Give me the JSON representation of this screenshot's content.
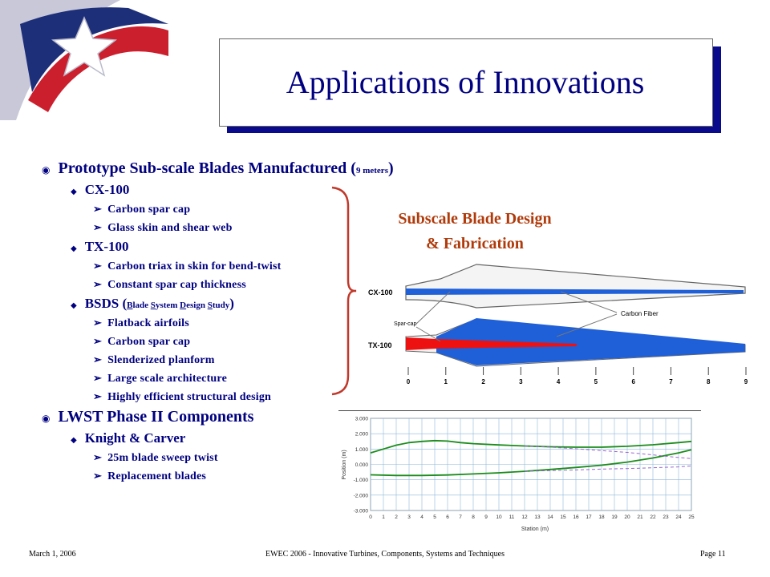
{
  "slide": {
    "title": "Applications of Innovations",
    "bullets": [
      {
        "level": 1,
        "parts": [
          {
            "t": "Prototype Sub-scale Blades Manufactured ("
          },
          {
            "t": "9 meters",
            "small": true
          },
          {
            "t": ")"
          }
        ]
      },
      {
        "level": 2,
        "parts": [
          {
            "t": "CX-100"
          }
        ]
      },
      {
        "level": 3,
        "parts": [
          {
            "t": "Carbon spar cap"
          }
        ]
      },
      {
        "level": 3,
        "parts": [
          {
            "t": "Glass skin and shear web"
          }
        ]
      },
      {
        "level": 2,
        "parts": [
          {
            "t": "TX-100"
          }
        ]
      },
      {
        "level": 3,
        "parts": [
          {
            "t": "Carbon triax in skin for bend-twist"
          }
        ]
      },
      {
        "level": 3,
        "parts": [
          {
            "t": "Constant spar cap thickness"
          }
        ]
      },
      {
        "level": 2,
        "parts": [
          {
            "t": "BSDS ("
          },
          {
            "t": "B",
            "small": true,
            "u": true
          },
          {
            "t": "lade ",
            "small": true
          },
          {
            "t": "S",
            "small": true,
            "u": true
          },
          {
            "t": "ystem ",
            "small": true
          },
          {
            "t": "D",
            "small": true,
            "u": true
          },
          {
            "t": "esign ",
            "small": true
          },
          {
            "t": "S",
            "small": true,
            "u": true
          },
          {
            "t": "tudy",
            "small": true
          },
          {
            "t": ")"
          }
        ]
      },
      {
        "level": 3,
        "parts": [
          {
            "t": "Flatback airfoils"
          }
        ]
      },
      {
        "level": 3,
        "parts": [
          {
            "t": "Carbon spar cap"
          }
        ]
      },
      {
        "level": 3,
        "parts": [
          {
            "t": "Slenderized planform"
          }
        ]
      },
      {
        "level": 3,
        "parts": [
          {
            "t": "Large scale architecture"
          }
        ]
      },
      {
        "level": 3,
        "parts": [
          {
            "t": "Highly efficient structural design"
          }
        ]
      },
      {
        "level": 1,
        "parts": [
          {
            "t": "LWST Phase II Components"
          }
        ]
      },
      {
        "level": 2,
        "parts": [
          {
            "t": "Knight & Carver"
          }
        ]
      },
      {
        "level": 3,
        "parts": [
          {
            "t": "25m blade sweep twist"
          }
        ]
      },
      {
        "level": 3,
        "parts": [
          {
            "t": "Replacement blades"
          }
        ]
      }
    ],
    "callout": {
      "line1": "Subscale Blade Design",
      "line2": "& Fabrication"
    },
    "blade_diagram": {
      "labels": {
        "cx": "CX-100",
        "tx": "TX-100",
        "carbon_fiber": "Carbon Fiber",
        "spar_cap": "Spar-cap"
      },
      "scale_ticks": [
        "0",
        "1",
        "2",
        "3",
        "4",
        "5",
        "6",
        "7",
        "8",
        "9"
      ],
      "colors": {
        "blade_fill": "#1f5fd8",
        "spar_red": "#ee1111",
        "outline": "#555555"
      }
    },
    "chart_data": {
      "type": "line",
      "xlabel": "Station (m)",
      "ylabel": "Position (m)",
      "xlim": [
        0,
        25
      ],
      "ylim": [
        -3,
        3
      ],
      "xticks": [
        "0",
        "1",
        "2",
        "3",
        "4",
        "5",
        "6",
        "7",
        "8",
        "9",
        "10",
        "11",
        "12",
        "13",
        "14",
        "15",
        "16",
        "17",
        "18",
        "19",
        "20",
        "21",
        "22",
        "23",
        "24",
        "25"
      ],
      "yticks": [
        "3.000",
        "2.000",
        "1.000",
        "0.000",
        "-1.000",
        "-2.000",
        "-3.000"
      ],
      "grid": true,
      "series": [
        {
          "style": "solid",
          "color": "#1a8c1a",
          "x": [
            0,
            1,
            2,
            3,
            4,
            5,
            6,
            7,
            8,
            10,
            12,
            14,
            16,
            18,
            20,
            22,
            24,
            25
          ],
          "y": [
            0.75,
            1.0,
            1.25,
            1.42,
            1.5,
            1.55,
            1.52,
            1.42,
            1.35,
            1.27,
            1.2,
            1.15,
            1.12,
            1.12,
            1.18,
            1.28,
            1.42,
            1.5
          ]
        },
        {
          "style": "solid",
          "color": "#1a8c1a",
          "x": [
            0,
            2,
            4,
            6,
            8,
            10,
            12,
            14,
            16,
            18,
            20,
            22,
            24,
            25
          ],
          "y": [
            -0.68,
            -0.72,
            -0.72,
            -0.69,
            -0.62,
            -0.55,
            -0.45,
            -0.33,
            -0.2,
            -0.05,
            0.15,
            0.42,
            0.75,
            0.95
          ]
        },
        {
          "style": "dashed",
          "color": "#9966cc",
          "x": [
            12,
            14,
            16,
            18,
            20,
            22,
            24,
            25
          ],
          "y": [
            1.2,
            1.12,
            1.02,
            0.9,
            0.78,
            0.62,
            0.45,
            0.38
          ]
        },
        {
          "style": "dashed",
          "color": "#9966cc",
          "x": [
            12,
            14,
            16,
            18,
            20,
            22,
            24,
            25
          ],
          "y": [
            -0.45,
            -0.4,
            -0.36,
            -0.3,
            -0.27,
            -0.22,
            -0.16,
            -0.1
          ]
        }
      ]
    },
    "footer": {
      "date": "March 1, 2006",
      "center": "EWEC 2006 - Innovative Turbines, Components, Systems and Techniques",
      "page": "Page 11"
    }
  }
}
